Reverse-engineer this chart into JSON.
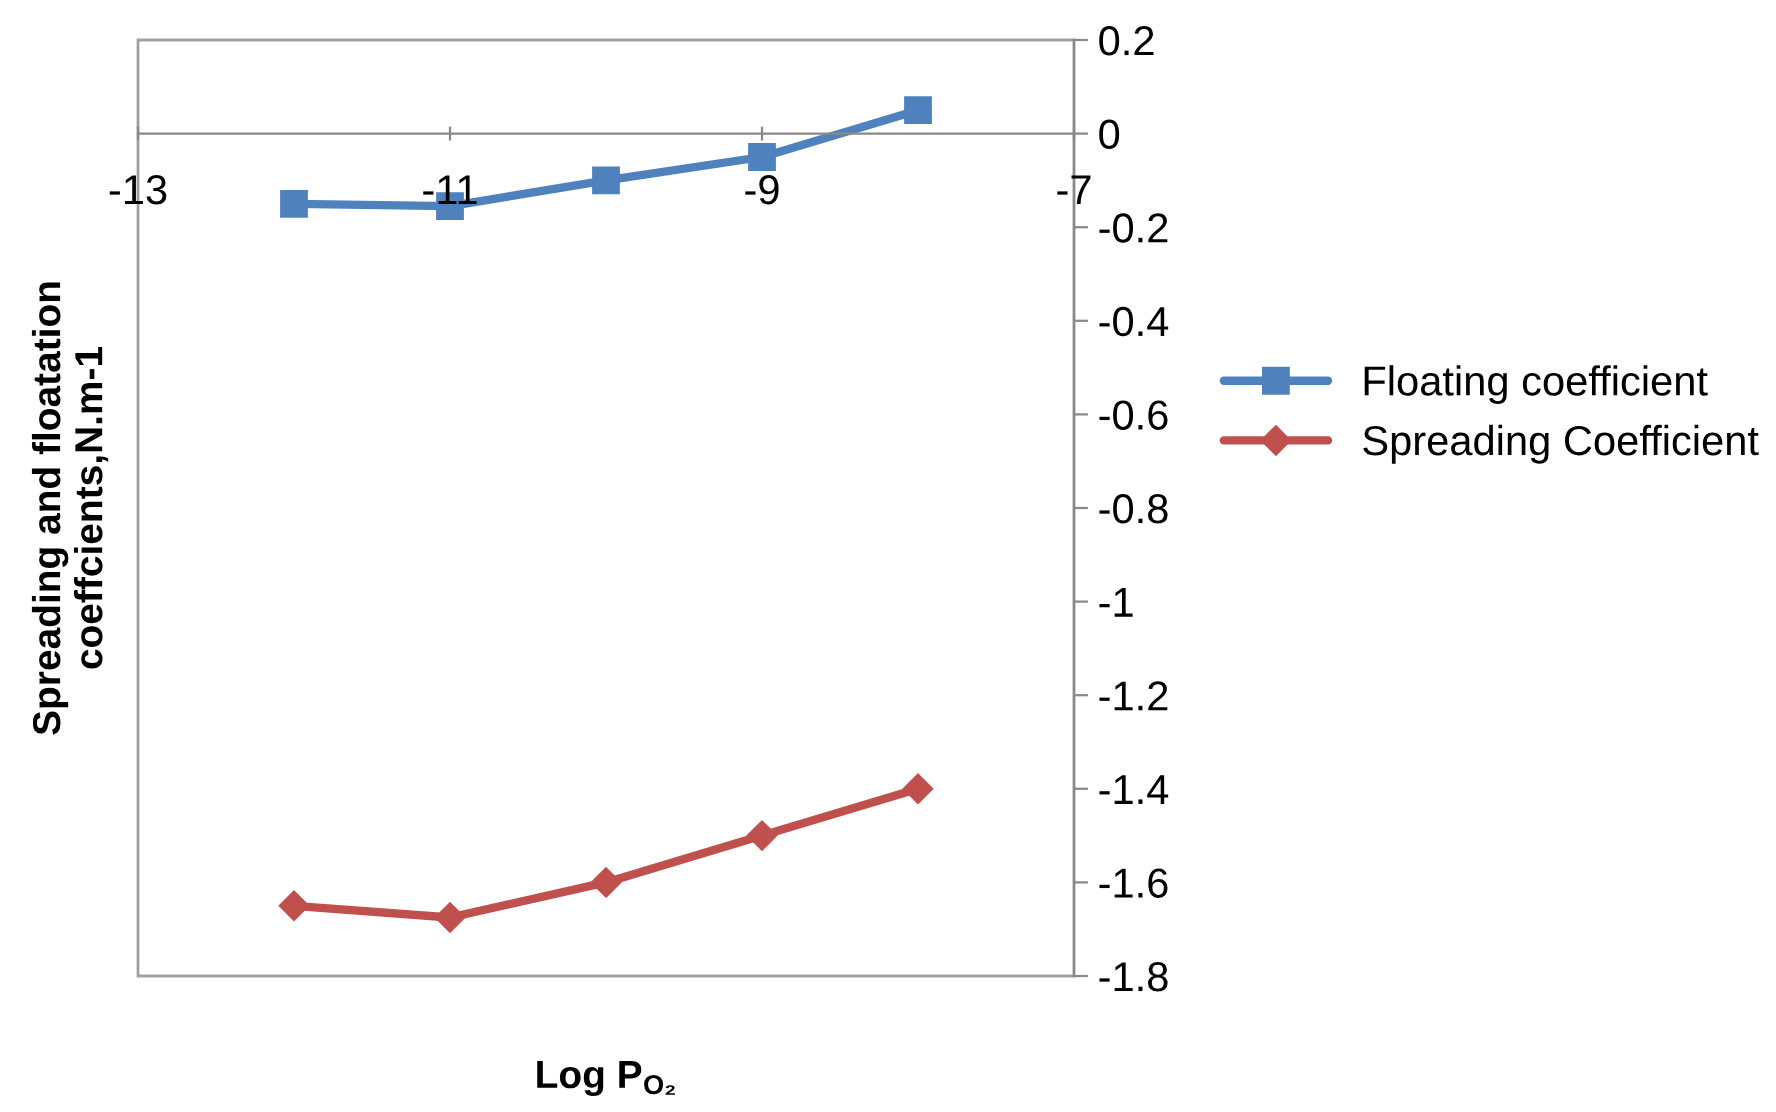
{
  "chart_data": {
    "type": "line",
    "xlabel": "Log P$_{O₂}$",
    "ylabel": "Spreading and floatation\ncoeffcients,N.m-1",
    "x": [
      -12,
      -11,
      -10,
      -9,
      -8
    ],
    "series": [
      {
        "name": "Floating coefficient",
        "color": "#4f81bd",
        "marker": "square",
        "values": [
          -0.15,
          -0.155,
          -0.1,
          -0.05,
          0.05
        ]
      },
      {
        "name": "Spreading Coefficient",
        "color": "#c0504d",
        "marker": "diamond",
        "values": [
          -1.65,
          -1.675,
          -1.6,
          -1.5,
          -1.4
        ]
      }
    ],
    "xlim": [
      -13,
      -7
    ],
    "xticks": [
      -13,
      -11,
      -9,
      -7
    ],
    "ylim": [
      -1.8,
      0.2
    ],
    "yticks": [
      -1.8,
      -1.6,
      -1.4,
      -1.2,
      -1,
      -0.8,
      -0.6,
      -0.4,
      -0.2,
      0,
      0.2
    ],
    "grid": false,
    "legend": "right",
    "line_style": "solid"
  }
}
